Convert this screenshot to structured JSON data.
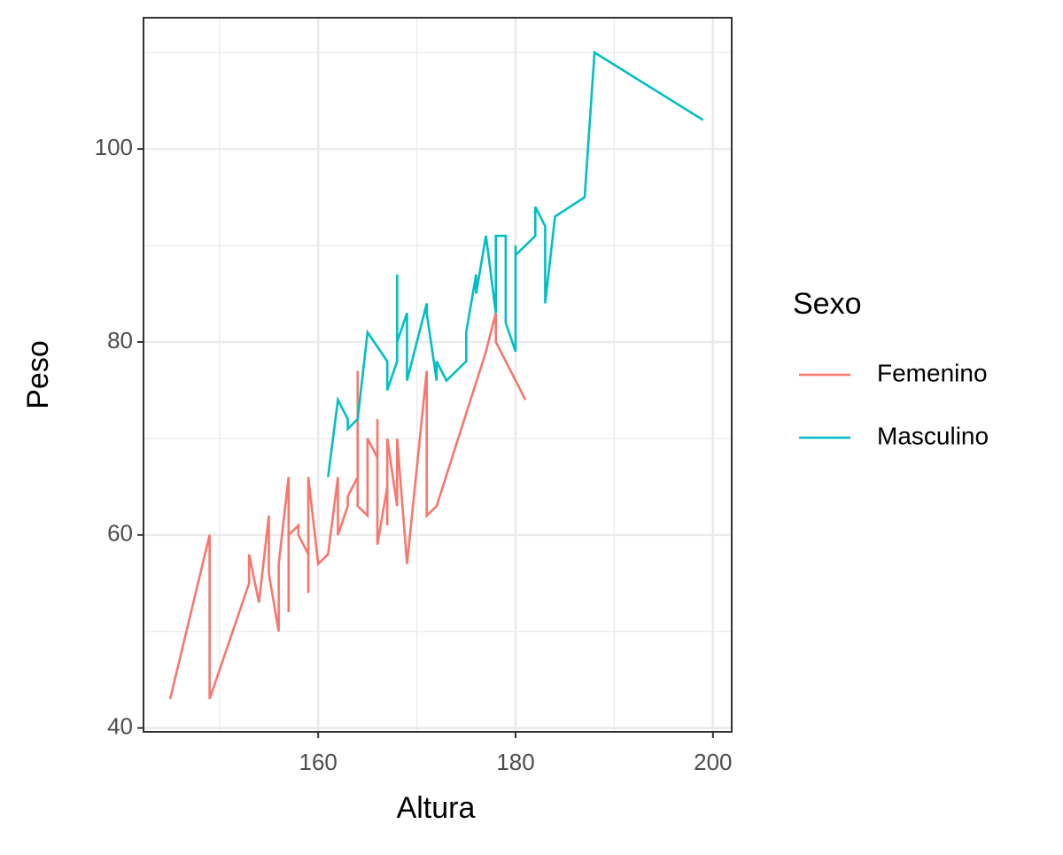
{
  "chart_data": {
    "type": "line",
    "x_label": "Altura",
    "y_label": "Peso",
    "legend_title": "Sexo",
    "xlim": [
      142.3,
      201.9
    ],
    "ylim": [
      39.6,
      113.6
    ],
    "xticks": [
      160,
      180,
      200
    ],
    "yticks": [
      40,
      60,
      80,
      100
    ],
    "xminor": [
      150,
      170,
      190
    ],
    "yminor": [
      50,
      70,
      90,
      110
    ],
    "grid": true,
    "legend": "right",
    "series": [
      {
        "name": "Femenino",
        "color": "#f8766d",
        "x": [
          145,
          149,
          149,
          153,
          153,
          154,
          155,
          155,
          156,
          156,
          157,
          157,
          157,
          158,
          158,
          159,
          159,
          159,
          160,
          161,
          162,
          162,
          163,
          163,
          164,
          164,
          164,
          165,
          165,
          166,
          166,
          166,
          167,
          167,
          167,
          168,
          168,
          169,
          171,
          171,
          172,
          177,
          178,
          178,
          181
        ],
        "values": [
          43,
          60,
          43,
          55,
          58,
          53,
          62,
          56,
          50,
          57,
          66,
          52,
          60,
          61,
          60,
          58,
          54,
          66,
          57,
          58,
          66,
          60,
          63,
          64,
          66,
          77,
          63,
          62,
          70,
          68,
          72,
          59,
          65,
          61,
          70,
          63,
          70,
          57,
          77,
          62,
          63,
          79,
          83,
          80,
          74
        ]
      },
      {
        "name": "Masculino",
        "color": "#00bfc4",
        "x": [
          161,
          162,
          163,
          163,
          164,
          165,
          167,
          167,
          168,
          168,
          168,
          169,
          169,
          171,
          171,
          172,
          172,
          173,
          175,
          175,
          176,
          176,
          177,
          178,
          178,
          179,
          179,
          180,
          180,
          180,
          182,
          182,
          183,
          183,
          184,
          187,
          188,
          199
        ],
        "values": [
          66,
          74,
          72,
          71,
          72,
          81,
          78,
          75,
          78,
          87,
          80,
          83,
          76,
          84,
          83,
          76,
          78,
          76,
          78,
          81,
          87,
          85,
          91,
          83,
          91,
          91,
          82,
          79,
          90,
          89,
          91,
          94,
          92,
          84,
          93,
          95,
          110,
          103
        ]
      }
    ]
  }
}
